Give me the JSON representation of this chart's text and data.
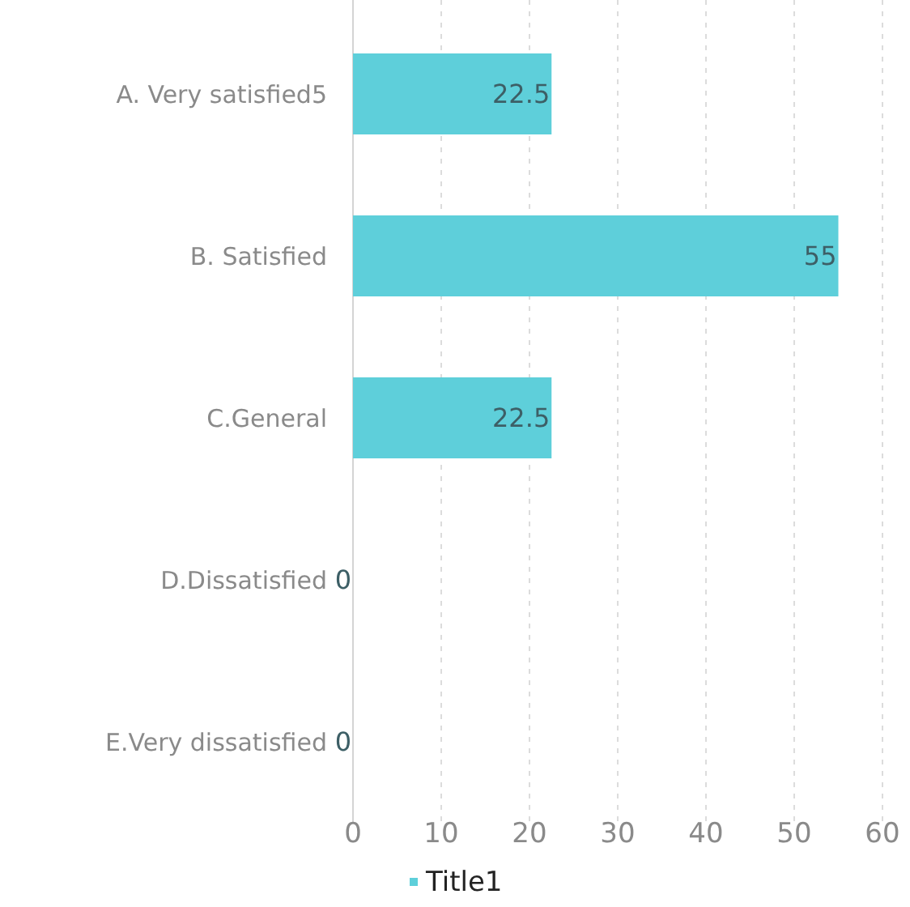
{
  "chart_data": {
    "type": "bar",
    "orientation": "horizontal",
    "categories": [
      "A. Very satisfied5",
      "B. Satisfied",
      "C.General",
      "D.Dissatisfied",
      "E.Very dissatisfied"
    ],
    "series": [
      {
        "name": "Title1",
        "color": "#5ecfda",
        "values": [
          22.5,
          55,
          22.5,
          0,
          0
        ]
      }
    ],
    "xlim": [
      0,
      60
    ],
    "xticks": [
      0,
      10,
      20,
      30,
      40,
      50,
      60
    ],
    "grid": "x",
    "legend": "bottom",
    "data_labels": true
  }
}
